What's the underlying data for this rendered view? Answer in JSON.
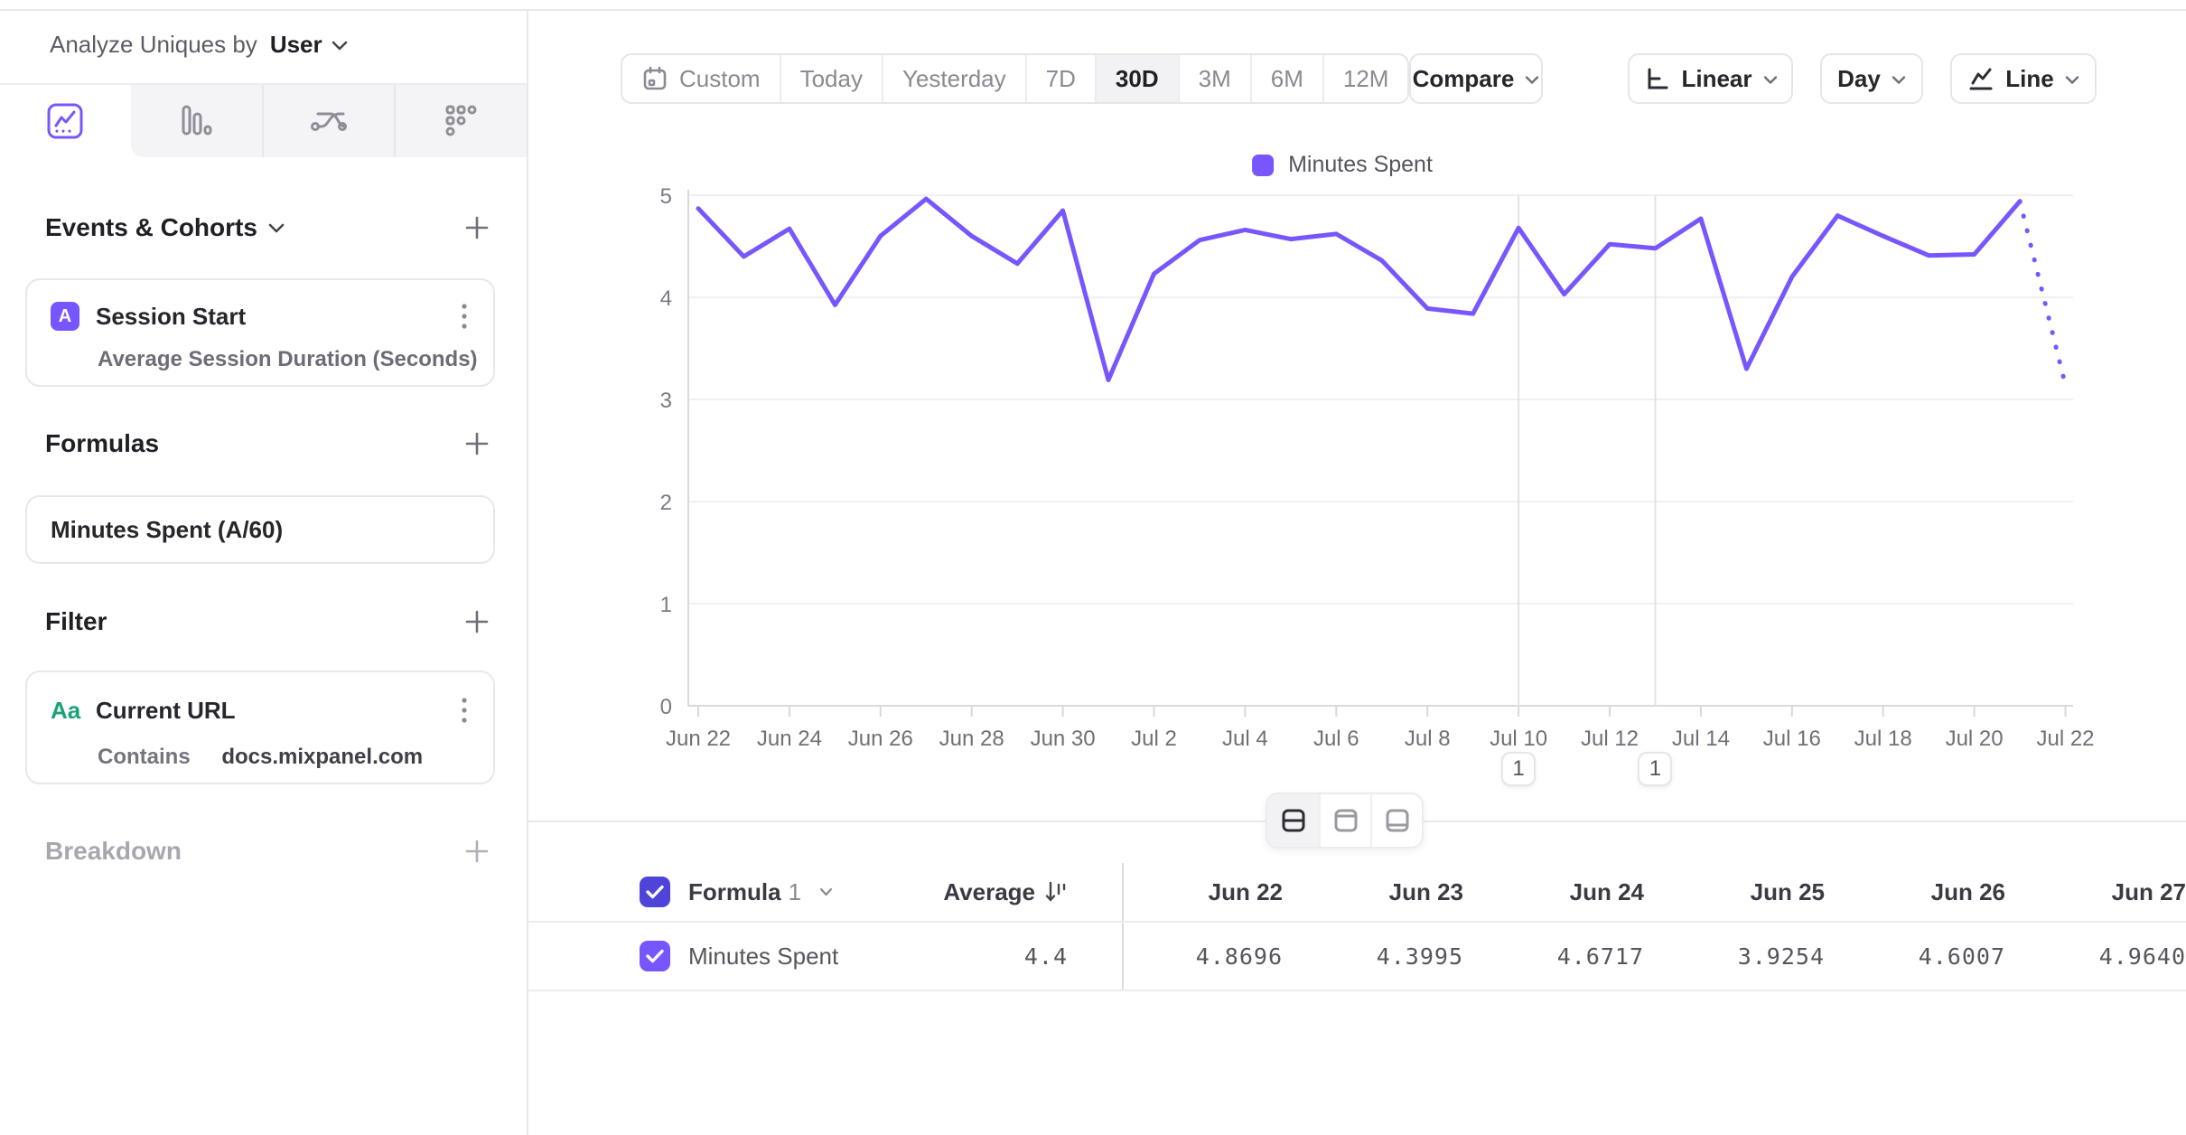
{
  "sidebar": {
    "analyze_label": "Analyze Uniques by",
    "analyze_value": "User",
    "tabs": [
      {
        "icon": "insights-line-icon",
        "selected": true
      },
      {
        "icon": "bar-chart-icon",
        "selected": false
      },
      {
        "icon": "flows-icon",
        "selected": false
      },
      {
        "icon": "retention-grid-icon",
        "selected": false
      }
    ],
    "events_section_title": "Events & Cohorts",
    "event_card": {
      "badge": "A",
      "title": "Session Start",
      "subtitle": "Average Session Duration (Seconds)"
    },
    "formulas_section_title": "Formulas",
    "formula_card_title": "Minutes Spent (A/60)",
    "filter_section_title": "Filter",
    "filter_card": {
      "badge": "Aa",
      "title": "Current URL",
      "operator": "Contains",
      "value": "docs.mixpanel.com"
    },
    "breakdown_section_title": "Breakdown"
  },
  "toolbar": {
    "date_ranges": [
      "Custom",
      "Today",
      "Yesterday",
      "7D",
      "30D",
      "3M",
      "6M",
      "12M"
    ],
    "active_range": "30D",
    "compare_label": "Compare",
    "scale_label": "Linear",
    "interval_label": "Day",
    "chart_type_label": "Line"
  },
  "chart_data": {
    "type": "line",
    "title": "",
    "legend_position": "top",
    "series": [
      {
        "name": "Minutes Spent",
        "color": "#7856ff"
      }
    ],
    "categories": [
      "Jun 22",
      "Jun 23",
      "Jun 24",
      "Jun 25",
      "Jun 26",
      "Jun 27",
      "Jun 28",
      "Jun 29",
      "Jun 30",
      "Jul 1",
      "Jul 2",
      "Jul 3",
      "Jul 4",
      "Jul 5",
      "Jul 6",
      "Jul 7",
      "Jul 8",
      "Jul 9",
      "Jul 10",
      "Jul 11",
      "Jul 12",
      "Jul 13",
      "Jul 14",
      "Jul 15",
      "Jul 16",
      "Jul 17",
      "Jul 18",
      "Jul 19",
      "Jul 20",
      "Jul 21",
      "Jul 22"
    ],
    "values": [
      4.8696,
      4.3995,
      4.6717,
      3.9254,
      4.6007,
      4.964,
      4.6,
      4.33,
      4.85,
      3.19,
      4.23,
      4.56,
      4.66,
      4.57,
      4.62,
      4.36,
      3.89,
      3.84,
      4.68,
      4.03,
      4.52,
      4.48,
      4.77,
      3.3,
      4.2,
      4.8,
      4.6,
      4.41,
      4.42,
      4.94,
      3.14
    ],
    "ylim": [
      0,
      5
    ],
    "yticks": [
      0,
      1,
      2,
      3,
      4,
      5
    ],
    "x_label_every": 2,
    "grid": true,
    "last_segment_dotted": true,
    "annotations": [
      {
        "date": "Jul 10",
        "count": "1"
      },
      {
        "date": "Jul 13",
        "count": "1"
      }
    ]
  },
  "table": {
    "group_label": "Formula",
    "group_number": "1",
    "average_label": "Average",
    "row_label": "Minutes Spent",
    "average_value": "4.4",
    "columns": [
      "Jun 22",
      "Jun 23",
      "Jun 24",
      "Jun 25",
      "Jun 26",
      "Jun 27"
    ],
    "values": [
      "4.8696",
      "4.3995",
      "4.6717",
      "3.9254",
      "4.6007",
      "4.9640"
    ]
  },
  "colors": {
    "accent": "#7856ff",
    "header_checkbox": "#4f44d9",
    "filter_badge": "#17a377"
  }
}
